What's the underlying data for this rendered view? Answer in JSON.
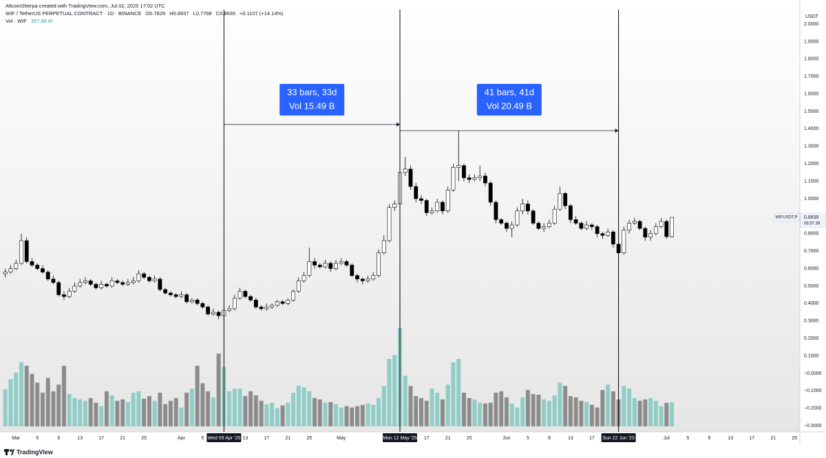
{
  "header": {
    "credit": "AltcoinSherpa created with TradingView.com, Jul 02, 2025 17:02 UTC",
    "symbol": "WIF / TetherUS PERPETUAL CONTRACT · 1D · BINANCE",
    "ohlc": [
      "O0.7829",
      "H0.8937",
      "L0.7768",
      "C0.8935"
    ],
    "change": "+0.1107 (+14.14%)",
    "volume_label": "Vol · WIF",
    "volume_value": "357.88 M"
  },
  "chart_data": {
    "type": "candlestick",
    "y_axis_unit": "USDT",
    "x": [
      "2025-02-27",
      "2025-02-28",
      "2025-03-01",
      "2025-03-02",
      "2025-03-03",
      "2025-03-04",
      "2025-03-05",
      "2025-03-06",
      "2025-03-07",
      "2025-03-08",
      "2025-03-09",
      "2025-03-10",
      "2025-03-11",
      "2025-03-12",
      "2025-03-13",
      "2025-03-14",
      "2025-03-15",
      "2025-03-16",
      "2025-03-17",
      "2025-03-18",
      "2025-03-19",
      "2025-03-20",
      "2025-03-21",
      "2025-03-22",
      "2025-03-23",
      "2025-03-24",
      "2025-03-25",
      "2025-03-26",
      "2025-03-27",
      "2025-03-28",
      "2025-03-29",
      "2025-03-30",
      "2025-03-31",
      "2025-04-01",
      "2025-04-02",
      "2025-04-03",
      "2025-04-04",
      "2025-04-05",
      "2025-04-06",
      "2025-04-07",
      "2025-04-08",
      "2025-04-09",
      "2025-04-10",
      "2025-04-11",
      "2025-04-12",
      "2025-04-13",
      "2025-04-14",
      "2025-04-15",
      "2025-04-16",
      "2025-04-17",
      "2025-04-18",
      "2025-04-19",
      "2025-04-20",
      "2025-04-21",
      "2025-04-22",
      "2025-04-23",
      "2025-04-24",
      "2025-04-25",
      "2025-04-26",
      "2025-04-27",
      "2025-04-28",
      "2025-04-29",
      "2025-04-30",
      "2025-05-01",
      "2025-05-02",
      "2025-05-03",
      "2025-05-04",
      "2025-05-05",
      "2025-05-06",
      "2025-05-07",
      "2025-05-08",
      "2025-05-09",
      "2025-05-10",
      "2025-05-11",
      "2025-05-12",
      "2025-05-13",
      "2025-05-14",
      "2025-05-15",
      "2025-05-16",
      "2025-05-17",
      "2025-05-18",
      "2025-05-19",
      "2025-05-20",
      "2025-05-21",
      "2025-05-22",
      "2025-05-23",
      "2025-05-24",
      "2025-05-25",
      "2025-05-26",
      "2025-05-27",
      "2025-05-28",
      "2025-05-29",
      "2025-05-30",
      "2025-05-31",
      "2025-06-01",
      "2025-06-02",
      "2025-06-03",
      "2025-06-04",
      "2025-06-05",
      "2025-06-06",
      "2025-06-07",
      "2025-06-08",
      "2025-06-09",
      "2025-06-10",
      "2025-06-11",
      "2025-06-12",
      "2025-06-13",
      "2025-06-14",
      "2025-06-15",
      "2025-06-16",
      "2025-06-17",
      "2025-06-18",
      "2025-06-19",
      "2025-06-20",
      "2025-06-21",
      "2025-06-22",
      "2025-06-23",
      "2025-06-24",
      "2025-06-25",
      "2025-06-26",
      "2025-06-27",
      "2025-06-28",
      "2025-06-29",
      "2025-06-30",
      "2025-07-01",
      "2025-07-02"
    ],
    "open": [
      0.57,
      0.58,
      0.6,
      0.63,
      0.76,
      0.64,
      0.62,
      0.6,
      0.58,
      0.54,
      0.52,
      0.45,
      0.44,
      0.47,
      0.5,
      0.52,
      0.53,
      0.51,
      0.49,
      0.51,
      0.5,
      0.53,
      0.52,
      0.51,
      0.52,
      0.53,
      0.57,
      0.55,
      0.53,
      0.54,
      0.48,
      0.46,
      0.45,
      0.44,
      0.45,
      0.41,
      0.42,
      0.4,
      0.38,
      0.34,
      0.35,
      0.33,
      0.36,
      0.37,
      0.43,
      0.47,
      0.44,
      0.42,
      0.38,
      0.37,
      0.38,
      0.39,
      0.41,
      0.4,
      0.42,
      0.47,
      0.53,
      0.56,
      0.64,
      0.62,
      0.61,
      0.63,
      0.6,
      0.63,
      0.64,
      0.62,
      0.56,
      0.54,
      0.53,
      0.54,
      0.56,
      0.69,
      0.76,
      0.95,
      0.97,
      1.15,
      1.17,
      1.07,
      1.0,
      0.99,
      0.92,
      0.93,
      0.98,
      0.93,
      1.05,
      1.18,
      1.19,
      1.12,
      1.11,
      1.12,
      1.13,
      1.09,
      0.98,
      0.88,
      0.86,
      0.83,
      0.85,
      0.93,
      0.97,
      0.93,
      0.86,
      0.83,
      0.84,
      0.86,
      0.94,
      1.03,
      0.96,
      0.88,
      0.86,
      0.83,
      0.85,
      0.84,
      0.8,
      0.79,
      0.81,
      0.74,
      0.69,
      0.82,
      0.86,
      0.87,
      0.83,
      0.78,
      0.8,
      0.84,
      0.87,
      0.7829
    ],
    "high": [
      0.6,
      0.62,
      0.65,
      0.8,
      0.78,
      0.66,
      0.63,
      0.62,
      0.59,
      0.56,
      0.53,
      0.47,
      0.49,
      0.52,
      0.54,
      0.55,
      0.54,
      0.52,
      0.53,
      0.52,
      0.55,
      0.54,
      0.53,
      0.54,
      0.55,
      0.59,
      0.58,
      0.56,
      0.56,
      0.55,
      0.49,
      0.47,
      0.46,
      0.47,
      0.46,
      0.43,
      0.43,
      0.41,
      0.39,
      0.37,
      0.36,
      0.38,
      0.39,
      0.45,
      0.49,
      0.48,
      0.45,
      0.43,
      0.39,
      0.4,
      0.4,
      0.42,
      0.42,
      0.43,
      0.48,
      0.55,
      0.58,
      0.72,
      0.66,
      0.63,
      0.65,
      0.64,
      0.65,
      0.66,
      0.65,
      0.63,
      0.57,
      0.55,
      0.56,
      0.58,
      0.71,
      0.79,
      0.97,
      0.99,
      1.21,
      1.24,
      1.19,
      1.09,
      1.02,
      1.0,
      0.95,
      1.0,
      0.99,
      1.07,
      1.2,
      1.39,
      1.2,
      1.14,
      1.14,
      1.19,
      1.15,
      1.1,
      0.99,
      0.89,
      0.87,
      0.87,
      0.95,
      1.0,
      0.99,
      0.94,
      0.87,
      0.86,
      0.88,
      0.96,
      1.07,
      1.04,
      0.97,
      0.9,
      0.87,
      0.87,
      0.86,
      0.85,
      0.81,
      0.83,
      0.82,
      0.75,
      0.84,
      0.88,
      0.89,
      0.88,
      0.84,
      0.82,
      0.86,
      0.89,
      0.88,
      0.8937
    ],
    "low": [
      0.55,
      0.57,
      0.59,
      0.62,
      0.63,
      0.61,
      0.59,
      0.57,
      0.53,
      0.51,
      0.44,
      0.42,
      0.43,
      0.46,
      0.49,
      0.51,
      0.5,
      0.48,
      0.48,
      0.49,
      0.49,
      0.51,
      0.5,
      0.5,
      0.51,
      0.52,
      0.54,
      0.52,
      0.52,
      0.47,
      0.45,
      0.44,
      0.43,
      0.43,
      0.4,
      0.4,
      0.39,
      0.37,
      0.33,
      0.33,
      0.31,
      0.3,
      0.35,
      0.36,
      0.42,
      0.43,
      0.41,
      0.37,
      0.36,
      0.36,
      0.37,
      0.38,
      0.39,
      0.39,
      0.41,
      0.46,
      0.52,
      0.55,
      0.6,
      0.6,
      0.6,
      0.58,
      0.59,
      0.62,
      0.61,
      0.55,
      0.52,
      0.51,
      0.52,
      0.53,
      0.55,
      0.68,
      0.75,
      0.93,
      0.92,
      1.13,
      1.05,
      0.98,
      0.97,
      0.9,
      0.91,
      0.92,
      0.91,
      0.92,
      1.04,
      1.1,
      1.1,
      1.09,
      1.1,
      1.1,
      1.07,
      0.96,
      0.86,
      0.85,
      0.81,
      0.78,
      0.84,
      0.91,
      0.91,
      0.85,
      0.82,
      0.81,
      0.83,
      0.85,
      0.93,
      0.94,
      0.86,
      0.85,
      0.82,
      0.82,
      0.82,
      0.78,
      0.77,
      0.78,
      0.72,
      0.67,
      0.68,
      0.8,
      0.85,
      0.82,
      0.76,
      0.76,
      0.79,
      0.83,
      0.77,
      0.7768
    ],
    "close": [
      0.58,
      0.6,
      0.63,
      0.76,
      0.64,
      0.62,
      0.6,
      0.58,
      0.54,
      0.52,
      0.45,
      0.44,
      0.47,
      0.5,
      0.52,
      0.53,
      0.51,
      0.49,
      0.51,
      0.5,
      0.53,
      0.52,
      0.51,
      0.52,
      0.53,
      0.57,
      0.55,
      0.53,
      0.54,
      0.48,
      0.46,
      0.45,
      0.44,
      0.45,
      0.41,
      0.42,
      0.4,
      0.38,
      0.34,
      0.35,
      0.33,
      0.36,
      0.37,
      0.43,
      0.47,
      0.44,
      0.42,
      0.38,
      0.37,
      0.38,
      0.39,
      0.41,
      0.4,
      0.42,
      0.47,
      0.53,
      0.56,
      0.64,
      0.62,
      0.61,
      0.63,
      0.6,
      0.63,
      0.64,
      0.62,
      0.56,
      0.54,
      0.53,
      0.54,
      0.56,
      0.69,
      0.76,
      0.95,
      0.97,
      1.15,
      1.17,
      1.07,
      1.0,
      0.99,
      0.92,
      0.93,
      0.98,
      0.93,
      1.05,
      1.18,
      1.19,
      1.12,
      1.11,
      1.12,
      1.13,
      1.09,
      0.98,
      0.88,
      0.86,
      0.83,
      0.85,
      0.93,
      0.97,
      0.93,
      0.86,
      0.83,
      0.84,
      0.86,
      0.94,
      1.03,
      0.96,
      0.88,
      0.86,
      0.83,
      0.85,
      0.84,
      0.8,
      0.79,
      0.81,
      0.74,
      0.69,
      0.82,
      0.86,
      0.87,
      0.83,
      0.78,
      0.8,
      0.84,
      0.87,
      0.7829,
      0.8935
    ],
    "volume": [
      550,
      700,
      800,
      950,
      900,
      780,
      650,
      500,
      720,
      520,
      620,
      900,
      480,
      420,
      400,
      380,
      420,
      350,
      300,
      520,
      460,
      380,
      400,
      360,
      500,
      520,
      410,
      450,
      380,
      500,
      330,
      380,
      420,
      280,
      500,
      560,
      900,
      640,
      520,
      430,
      1080,
      880,
      520,
      560,
      560,
      450,
      520,
      460,
      380,
      330,
      350,
      270,
      310,
      350,
      500,
      600,
      580,
      520,
      420,
      400,
      350,
      360,
      330,
      280,
      300,
      280,
      300,
      320,
      340,
      320,
      420,
      600,
      1000,
      1060,
      1460,
      750,
      600,
      450,
      420,
      380,
      560,
      500,
      400,
      620,
      950,
      1000,
      500,
      420,
      400,
      350,
      340,
      350,
      500,
      520,
      430,
      340,
      280,
      430,
      540,
      480,
      470,
      400,
      380,
      460,
      650,
      600,
      450,
      430,
      380,
      360,
      320,
      280,
      540,
      620,
      520,
      400,
      600,
      560,
      420,
      380,
      400,
      420,
      380,
      300,
      350,
      357.88
    ],
    "up_color": "#ffffff",
    "down_color": "#000000",
    "volume_up_color": "#7fc8bf",
    "volume_down_color": "#7b7b7b",
    "xlim": [
      "2025-02-26",
      "2025-07-26"
    ],
    "xticks": [
      {
        "value": "2025-03-01",
        "label": "Mar"
      },
      {
        "value": "2025-03-05",
        "label": "5"
      },
      {
        "value": "2025-03-09",
        "label": "9"
      },
      {
        "value": "2025-03-13",
        "label": "13"
      },
      {
        "value": "2025-03-17",
        "label": "17"
      },
      {
        "value": "2025-03-21",
        "label": "21"
      },
      {
        "value": "2025-03-25",
        "label": "25"
      },
      {
        "value": "2025-04-01",
        "label": "Apr"
      },
      {
        "value": "2025-04-05",
        "label": "5"
      },
      {
        "value": "2025-04-13",
        "label": "13"
      },
      {
        "value": "2025-04-17",
        "label": "17"
      },
      {
        "value": "2025-04-21",
        "label": "21"
      },
      {
        "value": "2025-04-25",
        "label": "25"
      },
      {
        "value": "2025-05-01",
        "label": "May"
      },
      {
        "value": "2025-05-17",
        "label": "17"
      },
      {
        "value": "2025-05-21",
        "label": "21"
      },
      {
        "value": "2025-05-25",
        "label": "25"
      },
      {
        "value": "2025-06-01",
        "label": "Jun"
      },
      {
        "value": "2025-06-05",
        "label": "5"
      },
      {
        "value": "2025-06-09",
        "label": "9"
      },
      {
        "value": "2025-06-13",
        "label": "13"
      },
      {
        "value": "2025-06-17",
        "label": "17"
      },
      {
        "value": "2025-07-01",
        "label": "Jul"
      },
      {
        "value": "2025-07-05",
        "label": "5"
      },
      {
        "value": "2025-07-09",
        "label": "9"
      },
      {
        "value": "2025-07-13",
        "label": "13"
      },
      {
        "value": "2025-07-17",
        "label": "17"
      },
      {
        "value": "2025-07-21",
        "label": "21"
      },
      {
        "value": "2025-07-25",
        "label": "25"
      }
    ],
    "ylim": [
      -0.335,
      2.067
    ],
    "yticks": [
      {
        "value": 2.0,
        "label": "2.0000"
      },
      {
        "value": 1.9,
        "label": "1.9000"
      },
      {
        "value": 1.8,
        "label": "1.8000"
      },
      {
        "value": 1.7,
        "label": "1.7000"
      },
      {
        "value": 1.6,
        "label": "1.6000"
      },
      {
        "value": 1.5,
        "label": "1.5000"
      },
      {
        "value": 1.4,
        "label": "1.4000"
      },
      {
        "value": 1.3,
        "label": "1.3000"
      },
      {
        "value": 1.2,
        "label": "1.2000"
      },
      {
        "value": 1.1,
        "label": "1.1000"
      },
      {
        "value": 1.0,
        "label": "1.0000"
      },
      {
        "value": 0.9,
        "label": "0.9000"
      },
      {
        "value": 0.8,
        "label": "0.8000"
      },
      {
        "value": 0.7,
        "label": "0.7000"
      },
      {
        "value": 0.6,
        "label": "0.6000"
      },
      {
        "value": 0.5,
        "label": "0.5000"
      },
      {
        "value": 0.4,
        "label": "0.4000"
      },
      {
        "value": 0.3,
        "label": "0.3000"
      },
      {
        "value": 0.2,
        "label": "0.2000"
      },
      {
        "value": 0.1,
        "label": "0.1000"
      },
      {
        "value": 0,
        "label": "−0.0000"
      },
      {
        "value": -0.1,
        "label": "−0.1000"
      },
      {
        "value": -0.2,
        "label": "−0.2000"
      },
      {
        "value": -0.3,
        "label": "−0.3000"
      }
    ],
    "grid": false,
    "markers": [
      {
        "x": "2025-04-09",
        "label": "Wed 09 Apr '25"
      },
      {
        "x": "2025-05-12",
        "label": "Mon 12 May '25"
      },
      {
        "x": "2025-06-22",
        "label": "Sun 22 Jun '25"
      }
    ],
    "measures": [
      {
        "from": "2025-04-09",
        "to": "2025-05-12",
        "text": [
          "33 bars, 33d",
          "Vol 15.49 B"
        ]
      },
      {
        "from": "2025-05-12",
        "to": "2025-06-22",
        "text": [
          "41 bars, 41d",
          "Vol 20.49 B"
        ]
      }
    ],
    "last_price": {
      "symbol": "WIFUSDT.P",
      "price": {
        "value": 0.8935,
        "label": "0.8935"
      },
      "countdown": "06:57:39"
    }
  },
  "footer": {
    "brand": "TradingView"
  }
}
